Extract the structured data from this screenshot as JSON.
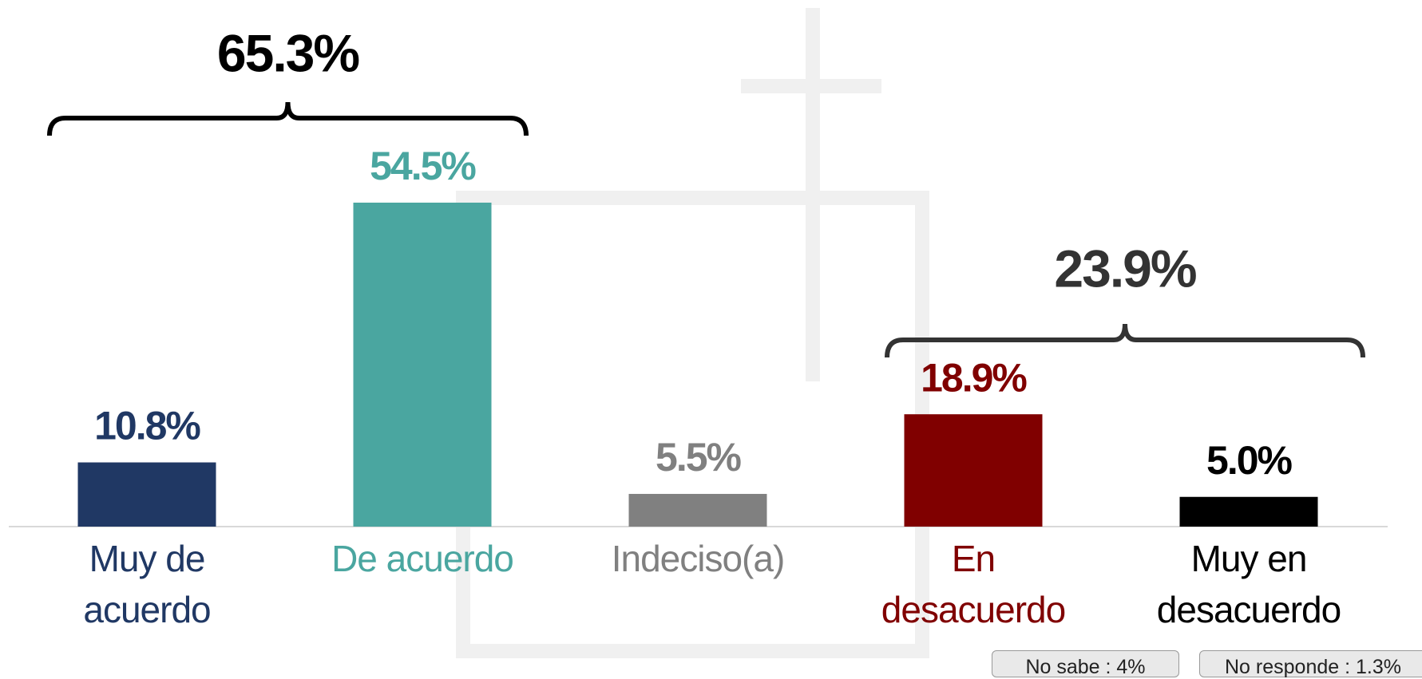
{
  "chart_data": {
    "type": "bar",
    "categories": [
      "Muy de\nacuerdo",
      "De acuerdo",
      "Indeciso(a)",
      "En\ndesacuerdo",
      "Muy en\ndesacuerdo"
    ],
    "values": [
      10.8,
      54.5,
      5.5,
      18.9,
      5.0
    ],
    "value_labels": [
      "10.8%",
      "54.5%",
      "5.5%",
      "18.9%",
      "5.0%"
    ],
    "colors": [
      "#203864",
      "#4aa6a0",
      "#808080",
      "#800000",
      "#000000"
    ],
    "annotations": [
      "65.3%",
      "23.9%"
    ],
    "notes": [
      "No sabe : 4%",
      "No responde : 1.3%"
    ]
  }
}
